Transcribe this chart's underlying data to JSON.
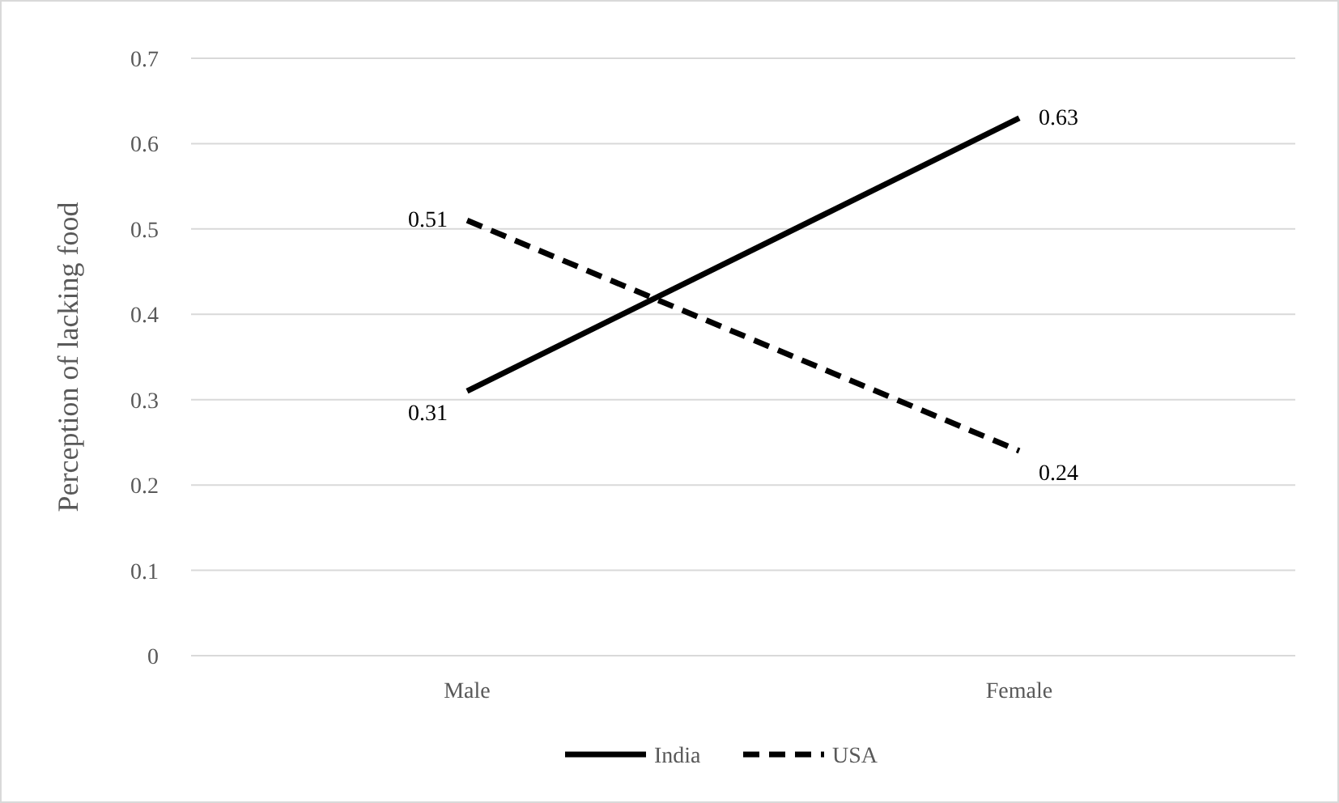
{
  "chart_data": {
    "type": "line",
    "ylabel": "Perception of lacking food",
    "categories": [
      "Male",
      "Female"
    ],
    "series": [
      {
        "name": "India",
        "color": "#000000",
        "line_style": "solid",
        "values": [
          0.31,
          0.63
        ]
      },
      {
        "name": "USA",
        "color": "#000000",
        "line_style": "dashed",
        "values": [
          0.51,
          0.24
        ]
      }
    ],
    "ylim": [
      0,
      0.7
    ],
    "yticks": [
      0,
      0.1,
      0.2,
      0.3,
      0.4,
      0.5,
      0.6,
      0.7
    ],
    "grid": "y",
    "legend": "bottom",
    "data_labels": true,
    "marker": "none"
  }
}
